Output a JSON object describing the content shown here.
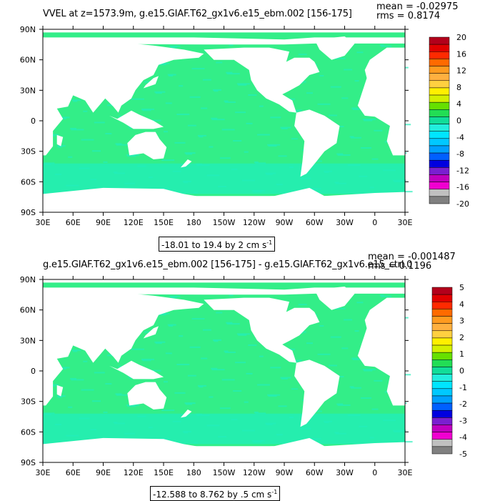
{
  "panels": [
    {
      "title": "VVEL at z=1573.9m, g.e15.GIAF.T62_gx1v6.e15_ebm.002 [156-175]",
      "mean_label": "mean = -0.02975",
      "rms_label": "rms = 0.8174",
      "range_label": "-18.01 to 19.4 by 2 cm s",
      "range_unit_sup": "-1",
      "colorbar_labels": [
        "20",
        "16",
        "12",
        "8",
        "4",
        "0",
        "-4",
        "-8",
        "-12",
        "-16",
        "-20"
      ]
    },
    {
      "title": "g.e15.GIAF.T62_gx1v6.e15_ebm.002 [156-175] - g.e15.GIAF.T62_gx1v6.e15_ctrl.0",
      "mean_label": "mean = -0.001487",
      "rms_label": "rms = 0.1196",
      "range_label": "-12.588 to 8.762 by .5 cm s",
      "range_unit_sup": "-1",
      "colorbar_labels": [
        "5",
        "4",
        "3",
        "2",
        "1",
        "0",
        "-1",
        "-2",
        "-3",
        "-4",
        "-5"
      ]
    }
  ],
  "chart_data": [
    {
      "type": "heatmap",
      "title": "VVEL at z=1573.9m, g.e15.GIAF.T62_gx1v6.e15_ebm.002 [156-175]",
      "x_ticks": [
        "30E",
        "60E",
        "90E",
        "120E",
        "150E",
        "180",
        "150W",
        "120W",
        "90W",
        "60W",
        "30W",
        "0",
        "30E"
      ],
      "y_ticks": [
        "90N",
        "60N",
        "30N",
        "0",
        "30S",
        "60S",
        "90S"
      ],
      "color_levels": [
        -20,
        -18,
        -16,
        -14,
        -12,
        -10,
        -8,
        -6,
        -4,
        -2,
        0,
        2,
        4,
        6,
        8,
        10,
        12,
        14,
        16,
        18,
        20
      ],
      "data_min": -18.01,
      "data_max": 19.4,
      "contour_interval": 2,
      "units": "cm s-1",
      "mean": -0.02975,
      "rms": 0.8174
    },
    {
      "type": "heatmap",
      "title": "g.e15.GIAF.T62_gx1v6.e15_ebm.002 [156-175] - g.e15.GIAF.T62_gx1v6.e15_ctrl.0",
      "x_ticks": [
        "30E",
        "60E",
        "90E",
        "120E",
        "150E",
        "180",
        "150W",
        "120W",
        "90W",
        "60W",
        "30W",
        "0",
        "30E"
      ],
      "y_ticks": [
        "90N",
        "60N",
        "30N",
        "0",
        "30S",
        "60S",
        "90S"
      ],
      "color_levels": [
        -5,
        -4.5,
        -4,
        -3.5,
        -3,
        -2.5,
        -2,
        -1.5,
        -1,
        -0.5,
        0,
        0.5,
        1,
        1.5,
        2,
        2.5,
        3,
        3.5,
        4,
        4.5,
        5
      ],
      "data_min": -12.588,
      "data_max": 8.762,
      "contour_interval": 0.5,
      "units": "cm s-1",
      "mean": -0.001487,
      "rms": 0.1196
    }
  ],
  "colors": {
    "ocean_main": "#33ee88",
    "ocean_cyan": "#22eebb",
    "colorbar_top_to_bottom": [
      "#b3001b",
      "#e00000",
      "#ff2a00",
      "#ff6a00",
      "#ff9a1f",
      "#ffb040",
      "#ffd040",
      "#fff000",
      "#d4f000",
      "#66e000",
      "#22dd55",
      "#11dd99",
      "#22eedd",
      "#00e5ff",
      "#00c8ff",
      "#00a0ff",
      "#0060ff",
      "#0000e0",
      "#7a1fd0",
      "#c000c0",
      "#f000d0",
      "#c0c0c0",
      "#808080"
    ]
  }
}
